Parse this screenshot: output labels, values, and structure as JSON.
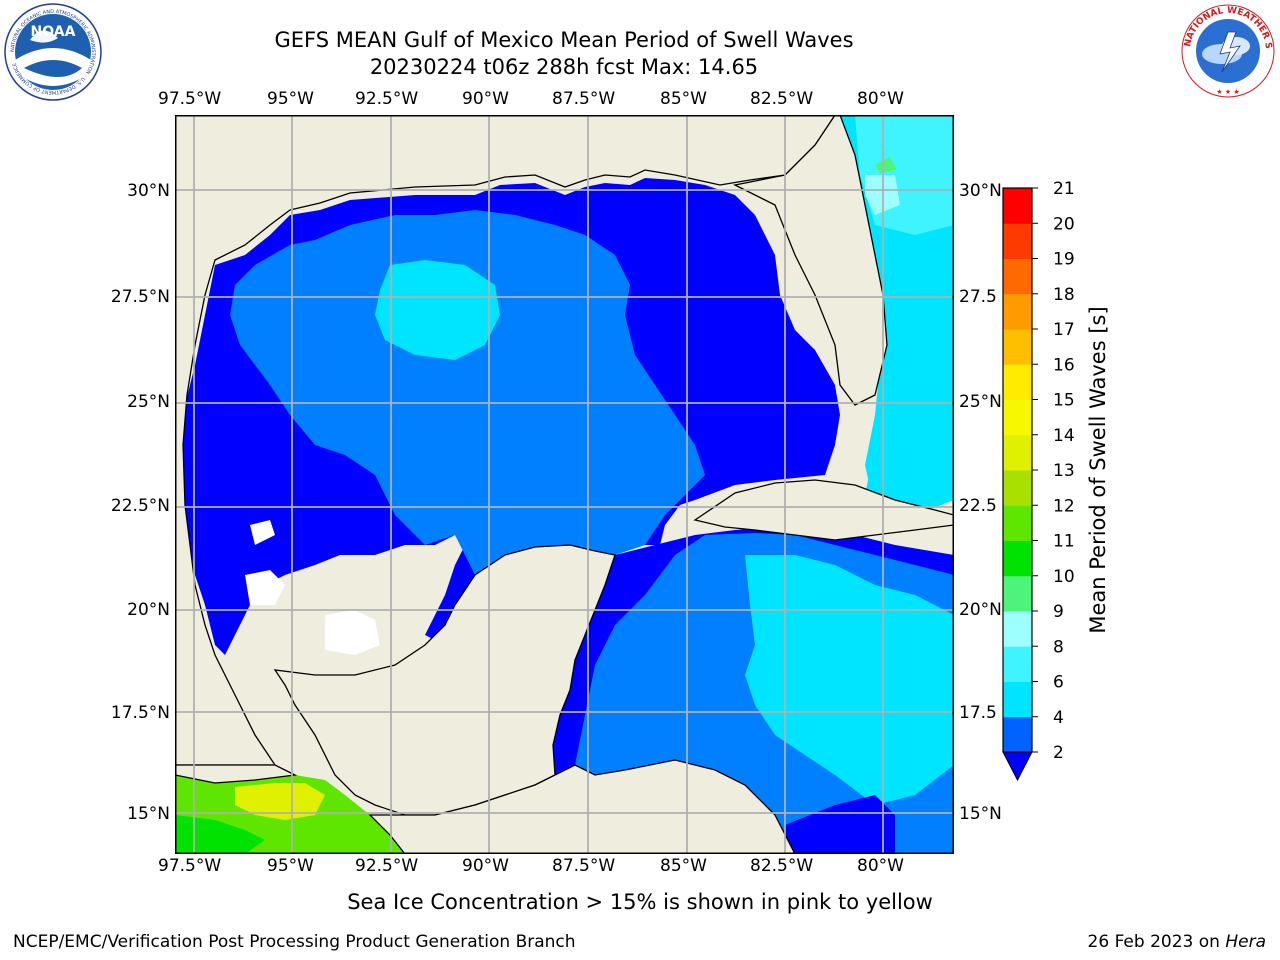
{
  "header": {
    "title_line1": "GEFS MEAN Gulf of Mexico Mean Period of Swell Waves",
    "title_line2": "20230224 t06z 288h fcst   Max: 14.65"
  },
  "logos": {
    "noaa_text": "NOAA",
    "noaa_ring": "NATIONAL OCEANIC AND ATMOSPHERIC ADMINISTRATION · U.S. DEPARTMENT OF COMMERCE",
    "nws_ring": "NATIONAL WEATHER SERVICE"
  },
  "map": {
    "lon_labels": [
      "97.5°W",
      "95°W",
      "92.5°W",
      "90°W",
      "87.5°W",
      "85°W",
      "82.5°W",
      "80°W"
    ],
    "lat_labels_left": [
      "30°N",
      "27.5°N",
      "25°N",
      "22.5°N",
      "20°N",
      "17.5°N",
      "15°N"
    ],
    "lat_labels_right": [
      "30°N",
      "27.5",
      "25°N",
      "22.5",
      "20°N",
      "17.5",
      "15°N"
    ],
    "colors": {
      "land": "#efedde",
      "grid": "#b0b0b0",
      "coast": "#000000"
    }
  },
  "colorbar": {
    "label": "Mean Period of Swell Waves [s]",
    "ticks": [
      "2",
      "4",
      "6",
      "8",
      "9",
      "10",
      "11",
      "12",
      "13",
      "14",
      "15",
      "16",
      "17",
      "18",
      "19",
      "20",
      "21"
    ],
    "colors": [
      "#0062ff",
      "#00e5ff",
      "#3ff4ff",
      "#9effff",
      "#4cf57a",
      "#00e200",
      "#5ee600",
      "#aae000",
      "#dff000",
      "#f7f700",
      "#ffeb00",
      "#ffbe00",
      "#ff9a00",
      "#ff6a00",
      "#ff3a00",
      "#ff0000"
    ],
    "under_color": "#0000ff"
  },
  "footer": {
    "note": "Sea Ice Concentration > 15% is shown in pink to yellow",
    "left": "NCEP/EMC/Verification Post Processing Product Generation Branch",
    "right_prefix": "26 Feb 2023 on ",
    "right_host": "Hera"
  }
}
